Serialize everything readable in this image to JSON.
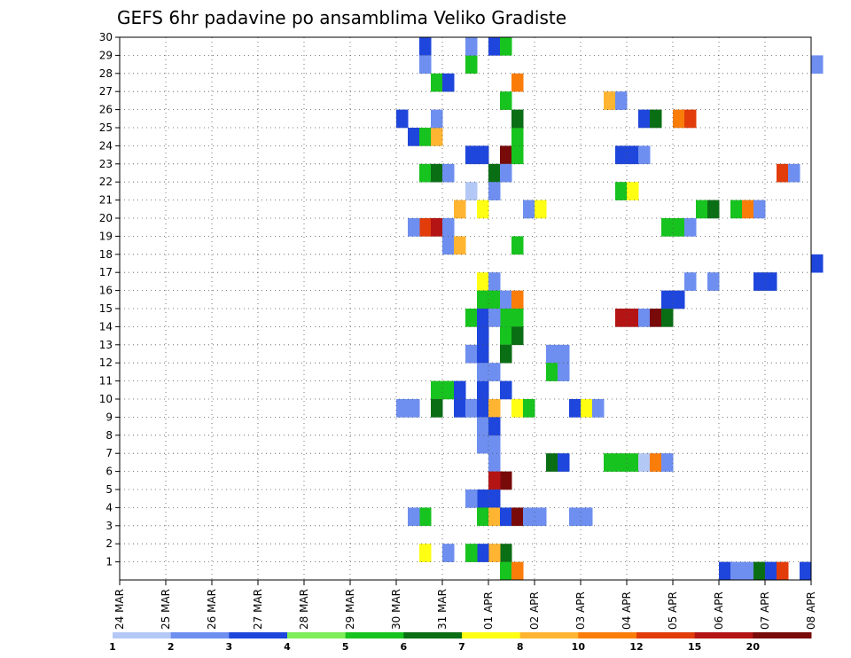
{
  "chart_data": {
    "type": "heatmap",
    "title": "GEFS 6hr padavine po ansamblima Veliko Gradiste",
    "x_tick_labels": [
      "24 MAR",
      "25 MAR",
      "26 MAR",
      "27 MAR",
      "28 MAR",
      "29 MAR",
      "30 MAR",
      "31 MAR",
      "01 APR",
      "02 APR",
      "03 APR",
      "04 APR",
      "05 APR",
      "06 APR",
      "07 APR",
      "08 APR"
    ],
    "y_tick_labels": [
      "1",
      "2",
      "3",
      "4",
      "5",
      "6",
      "7",
      "8",
      "9",
      "10",
      "11",
      "12",
      "13",
      "14",
      "15",
      "16",
      "17",
      "18",
      "19",
      "20",
      "21",
      "22",
      "23",
      "24",
      "25",
      "26",
      "27",
      "28",
      "29",
      "30"
    ],
    "x_axis": {
      "start_day": 0,
      "end_day": 15,
      "step_hours": 6
    },
    "y_range": [
      0,
      30
    ],
    "grid": true,
    "legend_placement": "bottom",
    "colorbar": {
      "labels": [
        "1",
        "2",
        "3",
        "4",
        "5",
        "6",
        "7",
        "8",
        "10",
        "12",
        "15",
        "20"
      ],
      "colors": [
        "#b4c8f5",
        "#6e8ff0",
        "#1e46dc",
        "#7ded5a",
        "#17c31e",
        "#0a6e14",
        "#ffff14",
        "#ffb432",
        "#fa7d0a",
        "#e13c0a",
        "#b41414",
        "#780a0a"
      ]
    },
    "cells": [
      {
        "t": 6.5,
        "m": 30,
        "c": 3
      },
      {
        "t": 6.5,
        "m": 29,
        "c": 2
      },
      {
        "t": 6.75,
        "m": 28,
        "c": 5
      },
      {
        "t": 7.0,
        "m": 28,
        "c": 3
      },
      {
        "t": 6.25,
        "m": 25,
        "c": 3
      },
      {
        "t": 6.5,
        "m": 25,
        "c": 5
      },
      {
        "t": 6.75,
        "m": 25,
        "c": 8
      },
      {
        "t": 6.0,
        "m": 26,
        "c": 3
      },
      {
        "t": 6.75,
        "m": 26,
        "c": 2
      },
      {
        "t": 6.5,
        "m": 23,
        "c": 5
      },
      {
        "t": 6.75,
        "m": 23,
        "c": 6
      },
      {
        "t": 7.0,
        "m": 23,
        "c": 2
      },
      {
        "t": 7.5,
        "m": 24,
        "c": 3
      },
      {
        "t": 7.75,
        "m": 24,
        "c": 3
      },
      {
        "t": 8.25,
        "m": 24,
        "c": 12
      },
      {
        "t": 8.5,
        "m": 24,
        "c": 5
      },
      {
        "t": 8.0,
        "m": 23,
        "c": 6
      },
      {
        "t": 8.25,
        "m": 23,
        "c": 2
      },
      {
        "t": 8.5,
        "m": 25,
        "c": 5
      },
      {
        "t": 8.5,
        "m": 26,
        "c": 6
      },
      {
        "t": 8.0,
        "m": 30,
        "c": 3
      },
      {
        "t": 8.25,
        "m": 30,
        "c": 5
      },
      {
        "t": 7.5,
        "m": 29,
        "c": 5
      },
      {
        "t": 7.5,
        "m": 30,
        "c": 2
      },
      {
        "t": 8.5,
        "m": 28,
        "c": 9
      },
      {
        "t": 8.25,
        "m": 27,
        "c": 5
      },
      {
        "t": 6.5,
        "m": 20,
        "c": 10
      },
      {
        "t": 6.75,
        "m": 20,
        "c": 11
      },
      {
        "t": 7.0,
        "m": 20,
        "c": 2
      },
      {
        "t": 6.25,
        "m": 20,
        "c": 2
      },
      {
        "t": 7.25,
        "m": 21,
        "c": 8
      },
      {
        "t": 7.75,
        "m": 21,
        "c": 7
      },
      {
        "t": 7.5,
        "m": 22,
        "c": 1
      },
      {
        "t": 8.0,
        "m": 22,
        "c": 2
      },
      {
        "t": 7.0,
        "m": 19,
        "c": 2
      },
      {
        "t": 7.25,
        "m": 19,
        "c": 8
      },
      {
        "t": 8.5,
        "m": 19,
        "c": 5
      },
      {
        "t": 8.75,
        "m": 21,
        "c": 2
      },
      {
        "t": 9.0,
        "m": 21,
        "c": 7
      },
      {
        "t": 10.75,
        "m": 22,
        "c": 5
      },
      {
        "t": 11.0,
        "m": 22,
        "c": 7
      },
      {
        "t": 11.0,
        "m": 24,
        "c": 3
      },
      {
        "t": 10.75,
        "m": 24,
        "c": 3
      },
      {
        "t": 11.25,
        "m": 24,
        "c": 2
      },
      {
        "t": 10.5,
        "m": 27,
        "c": 8
      },
      {
        "t": 10.75,
        "m": 27,
        "c": 2
      },
      {
        "t": 11.25,
        "m": 26,
        "c": 3
      },
      {
        "t": 11.5,
        "m": 26,
        "c": 6
      },
      {
        "t": 12.0,
        "m": 26,
        "c": 9
      },
      {
        "t": 12.25,
        "m": 26,
        "c": 10
      },
      {
        "t": 14.25,
        "m": 23,
        "c": 10
      },
      {
        "t": 14.5,
        "m": 23,
        "c": 2
      },
      {
        "t": 12.5,
        "m": 21,
        "c": 5
      },
      {
        "t": 12.75,
        "m": 21,
        "c": 6
      },
      {
        "t": 13.25,
        "m": 21,
        "c": 5
      },
      {
        "t": 13.5,
        "m": 21,
        "c": 9
      },
      {
        "t": 13.75,
        "m": 21,
        "c": 2
      },
      {
        "t": 11.75,
        "m": 20,
        "c": 5
      },
      {
        "t": 12.0,
        "m": 20,
        "c": 5
      },
      {
        "t": 12.25,
        "m": 20,
        "c": 2
      },
      {
        "t": 15.0,
        "m": 18,
        "c": 3
      },
      {
        "t": 15.0,
        "m": 29,
        "c": 2
      },
      {
        "t": 7.75,
        "m": 17,
        "c": 7
      },
      {
        "t": 8.0,
        "m": 17,
        "c": 2
      },
      {
        "t": 7.75,
        "m": 16,
        "c": 5
      },
      {
        "t": 8.0,
        "m": 16,
        "c": 5
      },
      {
        "t": 8.25,
        "m": 16,
        "c": 2
      },
      {
        "t": 8.5,
        "m": 16,
        "c": 9
      },
      {
        "t": 8.25,
        "m": 15,
        "c": 5
      },
      {
        "t": 8.5,
        "m": 15,
        "c": 5
      },
      {
        "t": 7.5,
        "m": 15,
        "c": 5
      },
      {
        "t": 7.75,
        "m": 15,
        "c": 3
      },
      {
        "t": 8.0,
        "m": 15,
        "c": 2
      },
      {
        "t": 7.75,
        "m": 14,
        "c": 3
      },
      {
        "t": 8.25,
        "m": 14,
        "c": 5
      },
      {
        "t": 8.5,
        "m": 14,
        "c": 6
      },
      {
        "t": 8.25,
        "m": 13,
        "c": 6
      },
      {
        "t": 7.5,
        "m": 13,
        "c": 2
      },
      {
        "t": 7.75,
        "m": 13,
        "c": 3
      },
      {
        "t": 9.25,
        "m": 13,
        "c": 2
      },
      {
        "t": 9.5,
        "m": 13,
        "c": 2
      },
      {
        "t": 10.75,
        "m": 15,
        "c": 11
      },
      {
        "t": 11.0,
        "m": 15,
        "c": 11
      },
      {
        "t": 11.25,
        "m": 15,
        "c": 2
      },
      {
        "t": 11.5,
        "m": 15,
        "c": 12
      },
      {
        "t": 11.75,
        "m": 15,
        "c": 6
      },
      {
        "t": 12.0,
        "m": 16,
        "c": 3
      },
      {
        "t": 12.25,
        "m": 17,
        "c": 2
      },
      {
        "t": 12.75,
        "m": 17,
        "c": 2
      },
      {
        "t": 13.75,
        "m": 17,
        "c": 3
      },
      {
        "t": 14.0,
        "m": 17,
        "c": 3
      },
      {
        "t": 11.75,
        "m": 16,
        "c": 3
      },
      {
        "t": 6.75,
        "m": 11,
        "c": 5
      },
      {
        "t": 7.0,
        "m": 11,
        "c": 5
      },
      {
        "t": 7.25,
        "m": 11,
        "c": 3
      },
      {
        "t": 6.75,
        "m": 10,
        "c": 6
      },
      {
        "t": 7.25,
        "m": 10,
        "c": 3
      },
      {
        "t": 7.5,
        "m": 10,
        "c": 2
      },
      {
        "t": 7.75,
        "m": 10,
        "c": 3
      },
      {
        "t": 8.0,
        "m": 10,
        "c": 8
      },
      {
        "t": 8.5,
        "m": 10,
        "c": 7
      },
      {
        "t": 8.75,
        "m": 10,
        "c": 5
      },
      {
        "t": 9.75,
        "m": 10,
        "c": 3
      },
      {
        "t": 10.0,
        "m": 10,
        "c": 7
      },
      {
        "t": 10.25,
        "m": 10,
        "c": 2
      },
      {
        "t": 6.0,
        "m": 10,
        "c": 2
      },
      {
        "t": 6.25,
        "m": 10,
        "c": 2
      },
      {
        "t": 7.75,
        "m": 11,
        "c": 3
      },
      {
        "t": 8.25,
        "m": 11,
        "c": 3
      },
      {
        "t": 9.25,
        "m": 12,
        "c": 5
      },
      {
        "t": 9.5,
        "m": 12,
        "c": 2
      },
      {
        "t": 7.75,
        "m": 12,
        "c": 2
      },
      {
        "t": 8.0,
        "m": 12,
        "c": 2
      },
      {
        "t": 8.0,
        "m": 7,
        "c": 2
      },
      {
        "t": 9.25,
        "m": 7,
        "c": 6
      },
      {
        "t": 9.5,
        "m": 7,
        "c": 3
      },
      {
        "t": 10.5,
        "m": 7,
        "c": 5
      },
      {
        "t": 10.75,
        "m": 7,
        "c": 5
      },
      {
        "t": 11.0,
        "m": 7,
        "c": 5
      },
      {
        "t": 11.25,
        "m": 7,
        "c": 1
      },
      {
        "t": 11.5,
        "m": 7,
        "c": 9
      },
      {
        "t": 11.75,
        "m": 7,
        "c": 2
      },
      {
        "t": 7.75,
        "m": 8,
        "c": 2
      },
      {
        "t": 8.0,
        "m": 8,
        "c": 2
      },
      {
        "t": 7.75,
        "m": 9,
        "c": 2
      },
      {
        "t": 8.0,
        "m": 9,
        "c": 3
      },
      {
        "t": 8.25,
        "m": 6,
        "c": 12
      },
      {
        "t": 8.0,
        "m": 6,
        "c": 11
      },
      {
        "t": 7.75,
        "m": 5,
        "c": 3
      },
      {
        "t": 8.0,
        "m": 5,
        "c": 3
      },
      {
        "t": 7.5,
        "m": 5,
        "c": 2
      },
      {
        "t": 7.75,
        "m": 4,
        "c": 5
      },
      {
        "t": 8.0,
        "m": 4,
        "c": 8
      },
      {
        "t": 8.25,
        "m": 4,
        "c": 3
      },
      {
        "t": 8.5,
        "m": 4,
        "c": 12
      },
      {
        "t": 8.75,
        "m": 4,
        "c": 2
      },
      {
        "t": 9.0,
        "m": 4,
        "c": 2
      },
      {
        "t": 9.75,
        "m": 4,
        "c": 2
      },
      {
        "t": 10.0,
        "m": 4,
        "c": 2
      },
      {
        "t": 6.5,
        "m": 4,
        "c": 5
      },
      {
        "t": 6.25,
        "m": 4,
        "c": 2
      },
      {
        "t": 8.25,
        "m": 2,
        "c": 6
      },
      {
        "t": 8.0,
        "m": 2,
        "c": 8
      },
      {
        "t": 7.75,
        "m": 2,
        "c": 3
      },
      {
        "t": 7.5,
        "m": 2,
        "c": 5
      },
      {
        "t": 7.0,
        "m": 2,
        "c": 2
      },
      {
        "t": 6.5,
        "m": 2,
        "c": 7
      },
      {
        "t": 8.25,
        "m": 1,
        "c": 5
      },
      {
        "t": 8.5,
        "m": 1,
        "c": 9
      },
      {
        "t": 13.0,
        "m": 1,
        "c": 3
      },
      {
        "t": 13.25,
        "m": 1,
        "c": 2
      },
      {
        "t": 13.5,
        "m": 1,
        "c": 2
      },
      {
        "t": 13.75,
        "m": 1,
        "c": 6
      },
      {
        "t": 14.0,
        "m": 1,
        "c": 3
      },
      {
        "t": 14.25,
        "m": 1,
        "c": 10
      },
      {
        "t": 14.75,
        "m": 1,
        "c": 3
      }
    ]
  }
}
